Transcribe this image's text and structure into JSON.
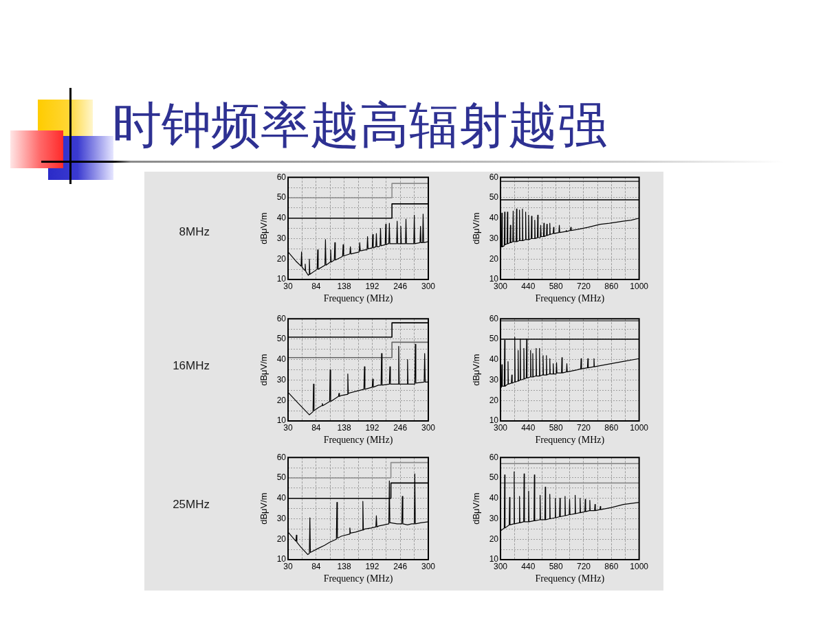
{
  "chart_data": [
    {
      "type": "line",
      "title": "时钟频率越高辐射越强",
      "subtitle": "8MHz",
      "xlabel": "Frequency (MHz)",
      "ylabel": "dBμV/m",
      "xlim": [
        30,
        300
      ],
      "xticks": [
        30,
        {
          "value": 57,
          "label": null
        },
        84,
        {
          "value": 111,
          "label": null
        },
        138,
        {
          "value": 165,
          "label": null
        },
        192,
        {
          "value": 219,
          "label": null
        },
        246,
        {
          "value": 273,
          "label": null
        },
        300
      ],
      "ylim": [
        10,
        60
      ],
      "yticks": [
        10,
        {
          "value": 15,
          "label": null
        },
        20,
        {
          "value": 25,
          "label": null
        },
        30,
        {
          "value": 35,
          "label": null
        },
        40,
        {
          "value": 45,
          "label": null
        },
        50,
        {
          "value": 55,
          "label": null
        },
        60
      ],
      "grid": true,
      "series": [
        {
          "color": "#000000",
          "x": [
            30,
            45,
            55,
            56,
            57,
            62,
            63,
            64,
            69,
            70,
            71,
            72,
            86,
            87,
            88,
            101,
            102,
            103,
            111,
            112,
            113,
            119,
            120,
            121,
            133,
            135,
            136,
            137,
            149,
            150,
            151,
            167,
            168,
            169,
            178,
            182,
            183,
            184,
            192,
            193,
            194,
            199,
            200,
            201,
            205,
            207,
            208,
            209,
            217,
            218,
            219,
            222,
            224,
            225,
            226,
            231,
            239,
            240,
            241,
            246,
            247,
            248,
            256,
            257,
            258,
            267,
            272,
            273,
            274,
            284,
            285,
            286,
            289,
            290,
            291,
            300
          ],
          "values": [
            23.5,
            19,
            16.5,
            23.5,
            16,
            14.5,
            17.5,
            14,
            12,
            12.5,
            20,
            12.5,
            15,
            24.5,
            15,
            17,
            29.5,
            17,
            18.5,
            24.5,
            18.5,
            19.5,
            28,
            19.5,
            21,
            21.5,
            27,
            21.5,
            22.5,
            26,
            22.5,
            23.5,
            28,
            24,
            24.5,
            24.5,
            31,
            25,
            25.5,
            32,
            25.5,
            26,
            32.5,
            26,
            26,
            26.5,
            35,
            26.5,
            27,
            37,
            27,
            27.5,
            27.5,
            37.5,
            27.5,
            27.5,
            27.5,
            38.5,
            27.5,
            27.5,
            36,
            27.5,
            27.5,
            39.5,
            27.5,
            27.5,
            27.5,
            41.5,
            27.5,
            28,
            36,
            28,
            28,
            42,
            28,
            28.5
          ]
        },
        {
          "type": "step",
          "color": "#8c8c8c",
          "x": [
            30,
            230,
            300
          ],
          "values": [
            50,
            57,
            57
          ]
        },
        {
          "type": "step",
          "color": "#000000",
          "x": [
            30,
            230,
            300
          ],
          "values": [
            40,
            47,
            47
          ]
        }
      ]
    },
    {
      "type": "line",
      "xlabel": "Frequency (MHz)",
      "ylabel": "dBμV/m",
      "xlim": [
        300,
        1000
      ],
      "xticks": [
        300,
        {
          "value": 370,
          "label": null
        },
        440,
        {
          "value": 510,
          "label": null
        },
        580,
        {
          "value": 650,
          "label": null
        },
        720,
        {
          "value": 790,
          "label": null
        },
        860,
        {
          "value": 930,
          "label": null
        },
        1000
      ],
      "ylim": [
        10,
        60
      ],
      "yticks": [
        10,
        {
          "value": 15,
          "label": null
        },
        20,
        {
          "value": 25,
          "label": null
        },
        30,
        {
          "value": 35,
          "label": null
        },
        40,
        {
          "value": 45,
          "label": null
        },
        50,
        {
          "value": 55,
          "label": null
        },
        60
      ],
      "grid": true,
      "series": [
        {
          "color": "#000000",
          "x": [
            300,
            305,
            307,
            309,
            319,
            321,
            323,
            333,
            335,
            337,
            348,
            350,
            352,
            362,
            364,
            366,
            379,
            381,
            383,
            394,
            396,
            398,
            409,
            411,
            413,
            425,
            427,
            429,
            440,
            442,
            444,
            455,
            457,
            459,
            471,
            473,
            475,
            486,
            488,
            490,
            501,
            503,
            505,
            517,
            519,
            521,
            532,
            534,
            536,
            547,
            549,
            551,
            566,
            568,
            570,
            595,
            597,
            599,
            630,
            632,
            634,
            653,
            655,
            657,
            689,
            740,
            804,
            850,
            919,
            960,
            1000
          ],
          "values": [
            25.5,
            26,
            42.5,
            26,
            26.5,
            43,
            27,
            27.5,
            43,
            27.5,
            28,
            36.5,
            28,
            28.5,
            43.5,
            28.5,
            28.5,
            44.5,
            28.5,
            29,
            44,
            29,
            29,
            44.5,
            29,
            29.5,
            43,
            29.5,
            29.5,
            41.5,
            29.5,
            30,
            41,
            30,
            30,
            39,
            30,
            30.5,
            41.5,
            30.5,
            30.5,
            36.5,
            31,
            31,
            37.5,
            31,
            31.5,
            37,
            31.5,
            32,
            37.5,
            32,
            32.5,
            35.5,
            32.5,
            33,
            36.5,
            33,
            33.5,
            34,
            33.5,
            34,
            35.5,
            34,
            34.5,
            35.5,
            37,
            37.5,
            38.5,
            39,
            40
          ]
        }
      ],
      "ref_lines": [
        {
          "axis": "y",
          "value": 58,
          "color": "#4d4d4d"
        },
        {
          "axis": "y",
          "value": 49,
          "color": "#000000"
        }
      ]
    },
    {
      "type": "line",
      "subtitle": "16MHz",
      "xlabel": "Frequency (MHz)",
      "ylabel": "dBμV/m",
      "xlim": [
        30,
        300
      ],
      "xticks": [
        30,
        {
          "value": 57,
          "label": null
        },
        84,
        {
          "value": 111,
          "label": null
        },
        138,
        {
          "value": 165,
          "label": null
        },
        192,
        {
          "value": 219,
          "label": null
        },
        246,
        {
          "value": 273,
          "label": null
        },
        300
      ],
      "ylim": [
        10,
        60
      ],
      "yticks": [
        10,
        {
          "value": 15,
          "label": null
        },
        20,
        {
          "value": 25,
          "label": null
        },
        30,
        {
          "value": 35,
          "label": null
        },
        40,
        {
          "value": 45,
          "label": null
        },
        50,
        {
          "value": 55,
          "label": null
        },
        60
      ],
      "grid": true,
      "series": [
        {
          "color": "#000000",
          "x": [
            30,
            50,
            71,
            78,
            79,
            80,
            88,
            95,
            96,
            97,
            110,
            111,
            112,
            127,
            128,
            129,
            133,
            144,
            145,
            146,
            176,
            177,
            178,
            192,
            193,
            194,
            204,
            209,
            210,
            211,
            225,
            226,
            227,
            231,
            242,
            243,
            244,
            259,
            260,
            261,
            267,
            274,
            275,
            276,
            292,
            293,
            294,
            300
          ],
          "values": [
            24,
            18.5,
            13,
            14.5,
            28,
            15,
            16.5,
            17.5,
            18.5,
            17.5,
            19.5,
            35,
            19.5,
            22,
            23.5,
            22,
            22.5,
            23,
            33,
            23.5,
            25.5,
            36.5,
            25.5,
            26.5,
            30.5,
            26.5,
            27.5,
            27.5,
            43,
            27.5,
            28,
            36.5,
            28,
            28,
            28,
            46.5,
            28,
            28,
            40,
            28,
            28,
            28,
            47.5,
            28.5,
            29,
            43,
            29,
            29
          ]
        },
        {
          "type": "step",
          "color": "#000000",
          "x": [
            30,
            230,
            300
          ],
          "values": [
            51,
            58,
            58
          ]
        },
        {
          "type": "step",
          "color": "#666666",
          "x": [
            30,
            230,
            300
          ],
          "values": [
            41,
            48.5,
            48.5
          ]
        }
      ]
    },
    {
      "type": "line",
      "xlabel": "Frequency (MHz)",
      "ylabel": "dBμV/m",
      "xlim": [
        300,
        1000
      ],
      "xticks": [
        300,
        {
          "value": 370,
          "label": null
        },
        440,
        {
          "value": 510,
          "label": null
        },
        580,
        {
          "value": 650,
          "label": null
        },
        720,
        {
          "value": 790,
          "label": null
        },
        860,
        {
          "value": 930,
          "label": null
        },
        1000
      ],
      "ylim": [
        10,
        60
      ],
      "yticks": [
        10,
        {
          "value": 15,
          "label": null
        },
        20,
        {
          "value": 25,
          "label": null
        },
        30,
        {
          "value": 35,
          "label": null
        },
        40,
        {
          "value": 45,
          "label": null
        },
        50,
        {
          "value": 55,
          "label": null
        },
        60
      ],
      "grid": true,
      "series": [
        {
          "color": "#000000",
          "x": [
            300,
            305,
            307,
            309,
            319,
            321,
            323,
            336,
            338,
            340,
            355,
            357,
            359,
            370,
            372,
            374,
            387,
            389,
            391,
            398,
            400,
            402,
            416,
            418,
            420,
            430,
            432,
            434,
            450,
            452,
            454,
            461,
            463,
            465,
            478,
            480,
            482,
            495,
            497,
            499,
            513,
            515,
            517,
            530,
            532,
            534,
            547,
            549,
            551,
            564,
            566,
            568,
            581,
            583,
            585,
            608,
            610,
            612,
            633,
            635,
            637,
            687,
            705,
            707,
            709,
            739,
            741,
            743,
            770,
            772,
            774,
            801,
            915,
            1000
          ],
          "values": [
            26.5,
            26.5,
            37.5,
            27,
            27,
            49.5,
            27,
            28,
            39,
            28,
            28.5,
            32.5,
            28.5,
            29,
            51,
            29,
            29.5,
            44.5,
            29.5,
            30,
            50,
            30,
            30.5,
            45.5,
            30.5,
            31,
            50,
            31,
            31.5,
            44.5,
            31.5,
            31.5,
            43,
            31.5,
            32,
            45.5,
            32,
            32,
            45.5,
            32,
            32.5,
            42,
            32.5,
            32.5,
            42,
            32.5,
            33,
            40.5,
            33,
            33,
            38,
            33,
            33,
            38.5,
            33.5,
            33.5,
            41,
            33.5,
            34,
            38,
            34,
            35,
            35.5,
            40.5,
            35.5,
            36,
            40.5,
            36,
            36.5,
            40.5,
            36.5,
            37,
            39,
            40.5
          ]
        }
      ],
      "ref_lines": [
        {
          "axis": "y",
          "value": 59,
          "color": "#4d4d4d"
        },
        {
          "axis": "y",
          "value": 50,
          "color": "#000000"
        }
      ]
    },
    {
      "type": "line",
      "subtitle": "25MHz",
      "xlabel": "Frequency (MHz)",
      "ylabel": "dBμV/m",
      "xlim": [
        30,
        300
      ],
      "xticks": [
        30,
        {
          "value": 57,
          "label": null
        },
        84,
        {
          "value": 111,
          "label": null
        },
        138,
        {
          "value": 165,
          "label": null
        },
        192,
        {
          "value": 219,
          "label": null
        },
        246,
        {
          "value": 273,
          "label": null
        },
        300
      ],
      "ylim": [
        10,
        60
      ],
      "yticks": [
        10,
        {
          "value": 15,
          "label": null
        },
        20,
        {
          "value": 25,
          "label": null
        },
        30,
        {
          "value": 35,
          "label": null
        },
        40,
        {
          "value": 45,
          "label": null
        },
        50,
        {
          "value": 55,
          "label": null
        },
        60
      ],
      "grid": true,
      "series": [
        {
          "color": "#000000",
          "x": [
            30,
            45,
            46,
            47,
            55,
            68,
            71,
            72,
            73,
            88,
            100,
            110,
            123,
            124,
            125,
            133,
            148,
            149,
            150,
            160,
            173,
            174,
            175,
            178,
            190,
            199,
            200,
            201,
            205,
            215,
            224,
            225,
            226,
            228,
            240,
            249,
            250,
            251,
            260,
            268,
            273,
            274,
            275,
            285,
            300
          ],
          "values": [
            23.5,
            19,
            22,
            18.5,
            16,
            12.5,
            13,
            30.5,
            13.5,
            15.5,
            17,
            18.5,
            20,
            38,
            20.5,
            21.5,
            22.5,
            25.5,
            23,
            23.5,
            24.5,
            38.5,
            24.5,
            25,
            25.5,
            26,
            31.5,
            26,
            26.5,
            27,
            27.5,
            48.5,
            28,
            28,
            27.5,
            27.5,
            41,
            27.5,
            27,
            27.5,
            27.5,
            52,
            27.5,
            28,
            28.5
          ]
        },
        {
          "type": "step",
          "color": "#8c8c8c",
          "x": [
            30,
            228,
            300
          ],
          "values": [
            50,
            57.5,
            57.5
          ]
        },
        {
          "type": "step",
          "color": "#000000",
          "x": [
            30,
            228,
            300
          ],
          "values": [
            40,
            47.5,
            47.5
          ]
        }
      ]
    },
    {
      "type": "line",
      "xlabel": "Frequency (MHz)",
      "ylabel": "dBμV/m",
      "xlim": [
        300,
        1000
      ],
      "xticks": [
        300,
        {
          "value": 370,
          "label": null
        },
        440,
        {
          "value": 510,
          "label": null
        },
        580,
        {
          "value": 650,
          "label": null
        },
        720,
        {
          "value": 790,
          "label": null
        },
        860,
        {
          "value": 930,
          "label": null
        },
        1000
      ],
      "ylim": [
        10,
        60
      ],
      "yticks": [
        10,
        {
          "value": 15,
          "label": null
        },
        20,
        {
          "value": 25,
          "label": null
        },
        30,
        {
          "value": 35,
          "label": null
        },
        40,
        {
          "value": 45,
          "label": null
        },
        50,
        {
          "value": 55,
          "label": null
        },
        60
      ],
      "grid": true,
      "series": [
        {
          "color": "#000000",
          "x": [
            300,
            319,
            321,
            323,
            344,
            346,
            348,
            367,
            369,
            371,
            394,
            396,
            398,
            417,
            419,
            421,
            440,
            442,
            444,
            469,
            471,
            473,
            498,
            500,
            502,
            524,
            526,
            528,
            547,
            549,
            551,
            575,
            577,
            579,
            598,
            600,
            602,
            624,
            626,
            628,
            647,
            649,
            651,
            675,
            677,
            679,
            700,
            702,
            704,
            726,
            728,
            730,
            749,
            751,
            753,
            775,
            777,
            779,
            802,
            804,
            806,
            860,
            921,
            1000
          ],
          "values": [
            24,
            25.5,
            51.5,
            25.5,
            27,
            40.5,
            27,
            27.5,
            53,
            27.5,
            28,
            41,
            28,
            28.5,
            52,
            28.5,
            28.5,
            43.5,
            28.5,
            29,
            51.5,
            29,
            29.5,
            41.5,
            29.5,
            29.5,
            45.5,
            29.5,
            30,
            42,
            30,
            30.5,
            40,
            30.5,
            31,
            40,
            31,
            31.5,
            41,
            31.5,
            32,
            39.5,
            32,
            32.5,
            41.5,
            32.5,
            33,
            40,
            33,
            33.5,
            39.5,
            33.5,
            34,
            39,
            34,
            34,
            37,
            34,
            34.5,
            36,
            34.5,
            35.5,
            37,
            38
          ]
        }
      ],
      "ref_lines": [
        {
          "axis": "y",
          "value": 57,
          "color": "#8c8c8c"
        },
        {
          "axis": "y",
          "value": 47.5,
          "color": "#8c8c8c"
        }
      ]
    }
  ]
}
